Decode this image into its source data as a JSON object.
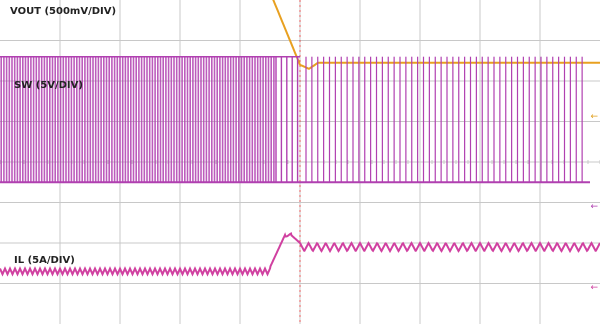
{
  "chart_data": {
    "type": "line",
    "title": "",
    "xlabel": "",
    "ylabel": "",
    "grid": true,
    "grid_divisions": {
      "horizontal": 10,
      "vertical": 8
    },
    "x_range": [
      0,
      10
    ],
    "trigger_x": 5,
    "series": [
      {
        "name": "VOUT (500mV/DIV)",
        "color": "#e8a020",
        "behavior": "flat ripple at high level, drops after load release then settles at lower level",
        "x": [
          0,
          4.5,
          5.0,
          5.15,
          5.3,
          10
        ],
        "y": [
          8.2,
          8.2,
          6.4,
          6.3,
          6.45,
          6.45
        ]
      },
      {
        "name": "SW (5V/DIV)",
        "color": "#b040b0",
        "behavior": "dense switching pulses before transient, sparse skip-mode pulses after",
        "high_level": 6.6,
        "low_level": 3.5,
        "dense_until_x": 4.6,
        "sparse_from_x": 5.0,
        "sparse_pulse_count": 48
      },
      {
        "name": "IL (5A/DIV)",
        "color": "#d040a0",
        "behavior": "low triangular ripple, peaks at transient, then higher offset ripple",
        "x": [
          0,
          4.5,
          4.75,
          4.85,
          5.0,
          10
        ],
        "y": [
          1.3,
          1.4,
          2.2,
          2.2,
          2.0,
          1.9
        ]
      }
    ]
  },
  "markers": {
    "vout_ground": "←",
    "sw_ground": "←",
    "il_ground": "←"
  },
  "colors": {
    "grid": "#c8c8c8",
    "trigger": "#e05050",
    "vout": "#e8a020",
    "sw": "#b040b0",
    "il": "#d040a0"
  }
}
